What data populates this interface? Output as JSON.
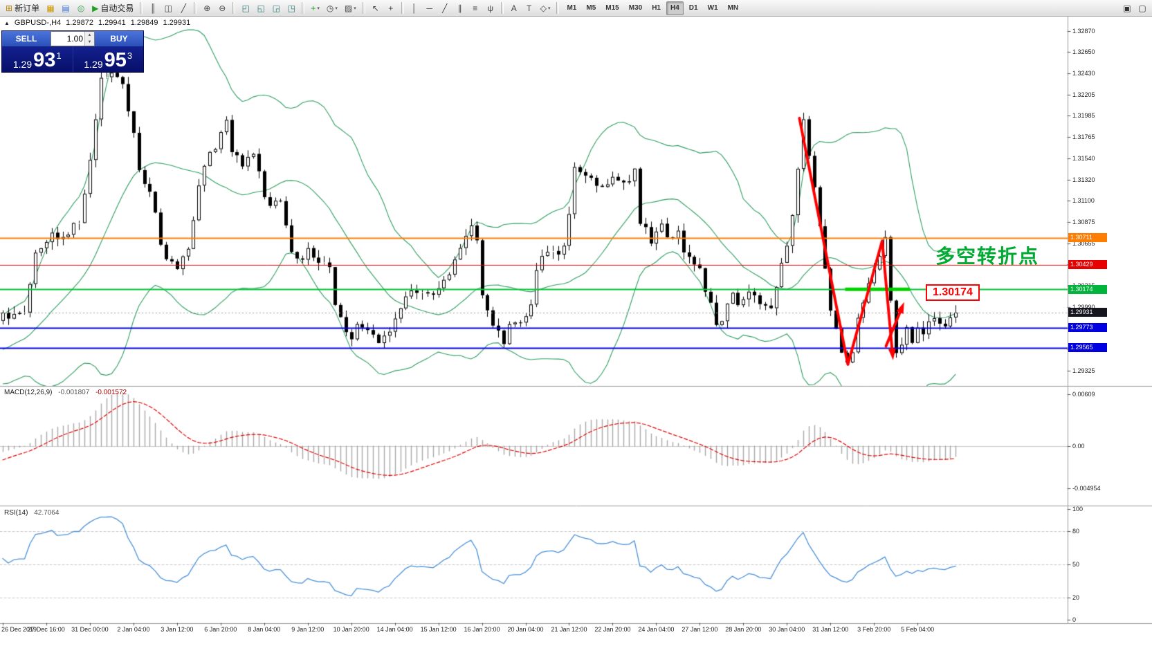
{
  "toolbar": {
    "main_items": [
      {
        "name": "new-order-button",
        "icon": "new-order-icon",
        "glyph": "⊞",
        "glyph_color": "#b8860b",
        "label": "新订单"
      },
      {
        "name": "market-watch-icon",
        "glyph": "▦",
        "glyph_color": "#c89600"
      },
      {
        "name": "data-window-icon",
        "glyph": "▤",
        "glyph_color": "#3b6fd4"
      },
      {
        "name": "navigator-icon",
        "glyph": "◎",
        "glyph_color": "#2f9e44"
      },
      {
        "name": "auto-trading-button",
        "icon": "auto-trading-icon",
        "glyph": "▶",
        "glyph_color": "#21a121",
        "label": "自动交易"
      },
      {
        "sep": true
      },
      {
        "name": "ohlc-bars-icon",
        "glyph": "║"
      },
      {
        "name": "candlestick-chart-icon",
        "glyph": "◫"
      },
      {
        "name": "line-chart-icon",
        "glyph": "╱"
      },
      {
        "sep": true
      },
      {
        "name": "zoom-in-icon",
        "glyph": "⊕"
      },
      {
        "name": "zoom-out-icon",
        "glyph": "⊖"
      },
      {
        "sep": true
      },
      {
        "name": "tile-windows-icon",
        "glyph": "◰",
        "glyph_color": "#2b7a78"
      },
      {
        "name": "cascade-windows-icon",
        "glyph": "◱",
        "glyph_color": "#2b7a78"
      },
      {
        "name": "tile-horizontal-icon",
        "glyph": "◲",
        "glyph_color": "#2b7a78"
      },
      {
        "name": "tile-vertical-icon",
        "glyph": "◳",
        "glyph_color": "#2b7a78"
      },
      {
        "sep": true
      },
      {
        "name": "indicators-button",
        "icon": "indicators-icon",
        "glyph": "+",
        "glyph_color": "#18a018",
        "dropdown": true
      },
      {
        "name": "periods-button",
        "icon": "clock-icon",
        "glyph": "◷",
        "dropdown": true
      },
      {
        "name": "templates-button",
        "icon": "template-icon",
        "glyph": "▨",
        "dropdown": true
      },
      {
        "sep": true
      },
      {
        "name": "cursor-icon",
        "glyph": "↖"
      },
      {
        "name": "crosshair-icon",
        "glyph": "+"
      },
      {
        "sep": true
      },
      {
        "name": "vertical-line-icon",
        "glyph": "│"
      },
      {
        "name": "horizontal-line-icon",
        "glyph": "─"
      },
      {
        "name": "trendline-icon",
        "glyph": "╱"
      },
      {
        "name": "channel-icon",
        "glyph": "∥"
      },
      {
        "name": "fibonacci-icon",
        "glyph": "≡"
      },
      {
        "name": "andrews-pitchfork-icon",
        "glyph": "ψ"
      },
      {
        "sep": true
      },
      {
        "name": "text-icon",
        "glyph": "A"
      },
      {
        "name": "text-label-icon",
        "glyph": "T"
      },
      {
        "name": "shapes-button",
        "icon": "shapes-icon",
        "glyph": "◇",
        "dropdown": true
      },
      {
        "sep": true
      }
    ],
    "timeframes": [
      "M1",
      "M5",
      "M15",
      "M30",
      "H1",
      "H4",
      "D1",
      "W1",
      "MN"
    ],
    "active_timeframe": "H4",
    "right_items": [
      {
        "name": "window-restore-icon",
        "glyph": "▣"
      },
      {
        "name": "window-new-icon",
        "glyph": "▢"
      }
    ]
  },
  "symbol_info": {
    "collapse_glyph": "▲",
    "name": "GBPUSD-,H4",
    "open": "1.29872",
    "high": "1.29941",
    "low": "1.29849",
    "close": "1.29931"
  },
  "trade_panel": {
    "sell_label": "SELL",
    "buy_label": "BUY",
    "volume": "1.00",
    "sell_price_main": "1.29",
    "sell_price_big": "93",
    "sell_price_pip": "1",
    "buy_price_main": "1.29",
    "buy_price_big": "95",
    "buy_price_pip": "3"
  },
  "annotations": {
    "turning_point": {
      "text": "多空转折点",
      "color": "#00aa33"
    },
    "price_callout": {
      "text": "1.30174",
      "color": "#ff0000"
    }
  },
  "indicators": {
    "macd": {
      "label": "MACD(12,26,9)",
      "value_main": "-0.001807",
      "value_signal": "-0.001572",
      "scale": [
        "0.00609",
        "0.00",
        "-0.004954"
      ]
    },
    "rsi": {
      "label": "RSI(14)",
      "value": "42.7064",
      "scale": [
        "100",
        "80",
        "50",
        "20",
        "0"
      ],
      "levels": [
        80,
        50,
        20
      ]
    }
  },
  "price_scale": {
    "ticks": [
      "1.32870",
      "1.32650",
      "1.32430",
      "1.32205",
      "1.31985",
      "1.31765",
      "1.31540",
      "1.31320",
      "1.31100",
      "1.30875",
      "1.30655",
      "1.30435",
      "1.30215",
      "1.29990",
      "1.29770",
      "1.29550",
      "1.29325"
    ],
    "badges": [
      {
        "text": "1.30711",
        "price": 1.30711,
        "color": "#ff7d00"
      },
      {
        "text": "1.30429",
        "price": 1.30429,
        "color": "#e60000"
      },
      {
        "text": "1.30174",
        "price": 1.30174,
        "color": "#00b43c"
      },
      {
        "text": "1.29931",
        "price": 1.29931,
        "color": "#15151f"
      },
      {
        "text": "1.29773",
        "price": 1.29773,
        "color": "#0000e0"
      },
      {
        "text": "1.29565",
        "price": 1.29565,
        "color": "#0000e0"
      }
    ]
  },
  "time_axis": {
    "labels": [
      "26 Dec 2019",
      "27 Dec 16:00",
      "31 Dec 00:00",
      "2 Jan 04:00",
      "3 Jan 12:00",
      "6 Jan 20:00",
      "8 Jan 04:00",
      "9 Jan 12:00",
      "10 Jan 20:00",
      "14 Jan 04:00",
      "15 Jan 12:00",
      "16 Jan 20:00",
      "20 Jan 04:00",
      "21 Jan 12:00",
      "22 Jan 20:00",
      "24 Jan 04:00",
      "27 Jan 12:00",
      "28 Jan 20:00",
      "30 Jan 04:00",
      "31 Jan 12:00",
      "3 Feb 20:00",
      "5 Feb 04:00"
    ],
    "bars_per_label": 8
  },
  "colors": {
    "chart_bg": "#ffffff",
    "candle_up": "#ffffff",
    "candle_down": "#000000",
    "candle_border": "#000000",
    "bollinger": "#2e9e5f",
    "macd_hist": "#a8a8a8",
    "macd_signal": "#e00000",
    "rsi_line": "#4a90d9",
    "level_dash": "#c8c8c8",
    "separator": "#9a9a9a",
    "current_price_line": "#9a9a9a"
  },
  "chart_data": {
    "type": "candlestick",
    "symbol": "GBPUSD",
    "timeframe": "H4",
    "title": "GBPUSD-,H4 1.29872 1.29941 1.29849 1.29931",
    "candle_count": 176,
    "current_price": 1.29931,
    "y_range": [
      1.2918,
      1.3302
    ],
    "macd_range": [
      -0.00666,
      0.00682
    ],
    "rsi_range": [
      0,
      100
    ],
    "bollinger": {
      "period": 20,
      "deviation": 2
    },
    "macd": {
      "fast": 12,
      "slow": 26,
      "signal": 9
    },
    "rsi": {
      "period": 14
    },
    "price_anchors": [
      [
        -40,
        1.313
      ],
      [
        -28,
        1.301
      ],
      [
        -18,
        1.293
      ],
      [
        -8,
        1.2955
      ],
      [
        -3,
        1.2975
      ],
      [
        0,
        1.299
      ],
      [
        4,
        1.2996
      ],
      [
        6,
        1.3058
      ],
      [
        9,
        1.3078
      ],
      [
        11,
        1.307
      ],
      [
        14,
        1.309
      ],
      [
        16,
        1.3148
      ],
      [
        18,
        1.3238
      ],
      [
        20,
        1.3245
      ],
      [
        22,
        1.3228
      ],
      [
        24,
        1.318
      ],
      [
        25,
        1.314
      ],
      [
        27,
        1.3122
      ],
      [
        29,
        1.3065
      ],
      [
        30,
        1.305
      ],
      [
        32,
        1.304
      ],
      [
        34,
        1.3058
      ],
      [
        36,
        1.313
      ],
      [
        37,
        1.315
      ],
      [
        39,
        1.3165
      ],
      [
        41,
        1.3192
      ],
      [
        42,
        1.316
      ],
      [
        44,
        1.315
      ],
      [
        46,
        1.3162
      ],
      [
        48,
        1.311
      ],
      [
        50,
        1.3108
      ],
      [
        51,
        1.3112
      ],
      [
        53,
        1.3058
      ],
      [
        54,
        1.3045
      ],
      [
        56,
        1.3056
      ],
      [
        58,
        1.3048
      ],
      [
        60,
        1.304
      ],
      [
        61,
        1.3005
      ],
      [
        62,
        1.2985
      ],
      [
        64,
        1.2963
      ],
      [
        65,
        1.298
      ],
      [
        67,
        1.297
      ],
      [
        69,
        1.2963
      ],
      [
        71,
        1.2978
      ],
      [
        73,
        1.3
      ],
      [
        74,
        1.301
      ],
      [
        76,
        1.3016
      ],
      [
        78,
        1.301
      ],
      [
        80,
        1.302
      ],
      [
        82,
        1.3036
      ],
      [
        83,
        1.305
      ],
      [
        84,
        1.306
      ],
      [
        86,
        1.3086
      ],
      [
        87,
        1.3068
      ],
      [
        88,
        1.301
      ],
      [
        90,
        1.2978
      ],
      [
        92,
        1.2963
      ],
      [
        93,
        1.2985
      ],
      [
        95,
        1.2985
      ],
      [
        97,
        1.3
      ],
      [
        98,
        1.304
      ],
      [
        100,
        1.3055
      ],
      [
        102,
        1.305
      ],
      [
        103,
        1.306
      ],
      [
        104,
        1.31
      ],
      [
        105,
        1.314
      ],
      [
        107,
        1.3133
      ],
      [
        109,
        1.3128
      ],
      [
        111,
        1.3128
      ],
      [
        112,
        1.3135
      ],
      [
        114,
        1.3126
      ],
      [
        116,
        1.3142
      ],
      [
        117,
        1.3088
      ],
      [
        118,
        1.308
      ],
      [
        119,
        1.307
      ],
      [
        121,
        1.3086
      ],
      [
        122,
        1.307
      ],
      [
        124,
        1.308
      ],
      [
        125,
        1.306
      ],
      [
        126,
        1.305
      ],
      [
        128,
        1.3038
      ],
      [
        129,
        1.3018
      ],
      [
        130,
        1.3
      ],
      [
        131,
        1.2976
      ],
      [
        133,
        1.3
      ],
      [
        134,
        1.301
      ],
      [
        135,
        1.3
      ],
      [
        137,
        1.3012
      ],
      [
        138,
        1.3014
      ],
      [
        139,
        1.3005
      ],
      [
        141,
        1.3
      ],
      [
        142,
        1.302
      ],
      [
        143,
        1.3045
      ],
      [
        144,
        1.3065
      ],
      [
        145,
        1.309
      ],
      [
        146,
        1.314
      ],
      [
        147,
        1.3195
      ],
      [
        148,
        1.316
      ],
      [
        149,
        1.312
      ],
      [
        150,
        1.308
      ],
      [
        151,
        1.304
      ],
      [
        152,
        1.3
      ],
      [
        153,
        1.2975
      ],
      [
        154,
        1.295
      ],
      [
        155,
        1.2938
      ],
      [
        156,
        1.2955
      ],
      [
        157,
        1.2985
      ],
      [
        158,
        1.3005
      ],
      [
        159,
        1.3022
      ],
      [
        160,
        1.3038
      ],
      [
        161,
        1.3056
      ],
      [
        162,
        1.3068
      ],
      [
        163,
        1.301
      ],
      [
        164,
        1.2952
      ],
      [
        165,
        1.296
      ],
      [
        166,
        1.2976
      ],
      [
        167,
        1.2962
      ],
      [
        168,
        1.298
      ],
      [
        169,
        1.297
      ],
      [
        170,
        1.2979
      ],
      [
        171,
        1.299
      ],
      [
        172,
        1.2982
      ],
      [
        173,
        1.2974
      ],
      [
        174,
        1.2984
      ],
      [
        175,
        1.29931
      ]
    ],
    "hlines": [
      {
        "price": 1.30711,
        "color": "#ff7d00",
        "width": 2
      },
      {
        "price": 1.30429,
        "color": "#e60000",
        "width": 1
      },
      {
        "price": 1.30174,
        "color": "#00c832",
        "width": 2
      },
      {
        "price": 1.29773,
        "color": "#0000e0",
        "width": 2
      },
      {
        "price": 1.29565,
        "color": "#0000e0",
        "width": 2
      }
    ],
    "thick_level_segment": {
      "price": 1.30174,
      "bar_start": 154.7,
      "bar_end": 166.6,
      "color": "#00d200",
      "width": 5
    },
    "trend_arrows": [
      {
        "points": [
          [
            146.3,
            1.3196
          ],
          [
            155.2,
            1.2939
          ],
          [
            161.5,
            1.3068
          ],
          [
            163.4,
            1.295
          ]
        ],
        "color": "#ff0000",
        "width": 4,
        "head": true
      },
      {
        "points": [
          [
            162.2,
            1.2958
          ],
          [
            165.1,
            1.2998
          ]
        ],
        "color": "#ff0000",
        "width": 4,
        "head": true
      }
    ]
  }
}
